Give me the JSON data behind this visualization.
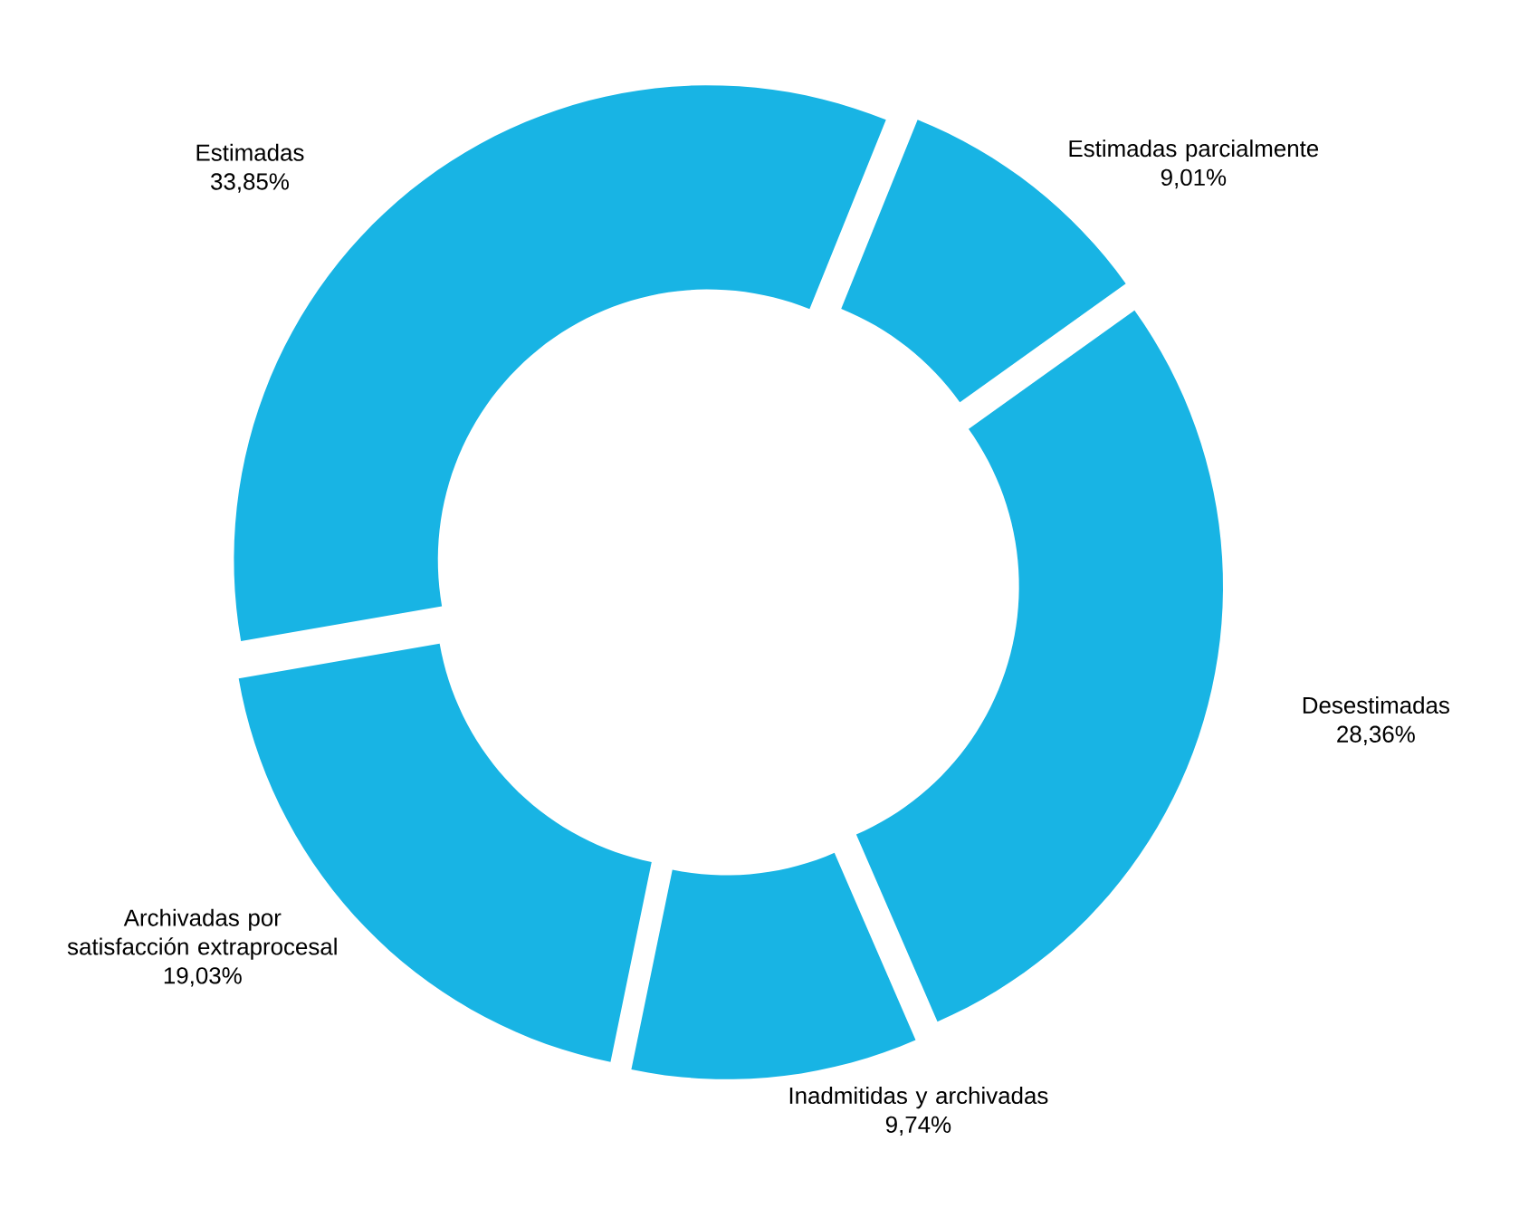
{
  "chart_data": {
    "type": "donut",
    "categories": [
      "Estimadas parcialmente",
      "Desestimadas",
      "Inadmitidas y archivadas",
      "Archivadas por satisfacción extraprocesal",
      "Estimadas"
    ],
    "values": [
      9.01,
      28.36,
      9.74,
      19.03,
      33.85
    ],
    "value_labels": [
      "9,01%",
      "28,36%",
      "9,74%",
      "19,03%",
      "33,85%"
    ],
    "colors": [
      "#18b4e4",
      "#18b4e4",
      "#18b4e4",
      "#18b4e4",
      "#18b4e4"
    ],
    "legend": false
  }
}
